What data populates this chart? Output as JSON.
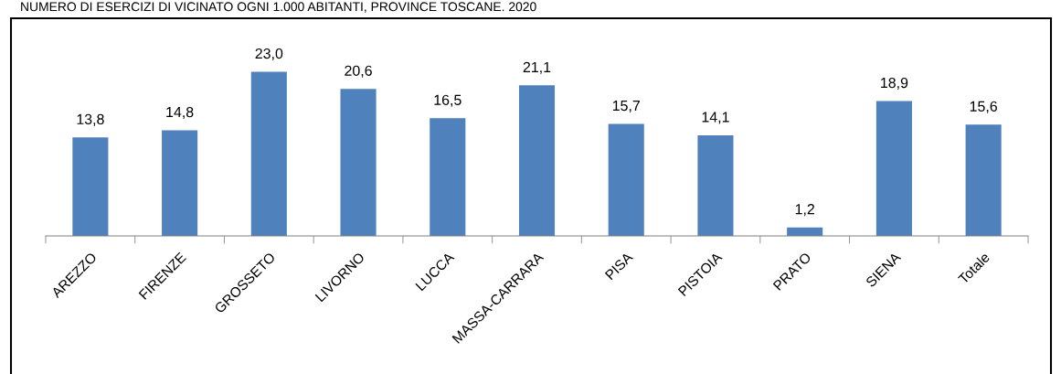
{
  "chart_data": {
    "type": "bar",
    "title": "NUMERO DI ESERCIZI DI VICINATO OGNI 1.000 ABITANTI, PROVINCE TOSCANE. 2020",
    "categories": [
      "AREZZO",
      "FIRENZE",
      "GROSSETO",
      "LIVORNO",
      "LUCCA",
      "MASSA-CARRARA",
      "PISA",
      "PISTOIA",
      "PRATO",
      "SIENA",
      "Totale"
    ],
    "values": [
      13.8,
      14.8,
      23.0,
      20.6,
      16.5,
      21.1,
      15.7,
      14.1,
      1.2,
      18.9,
      15.6
    ],
    "value_labels": [
      "13,8",
      "14,8",
      "23,0",
      "20,6",
      "16,5",
      "21,1",
      "15,7",
      "14,1",
      "1,2",
      "18,9",
      "15,6"
    ],
    "color": "#4f81bd"
  }
}
